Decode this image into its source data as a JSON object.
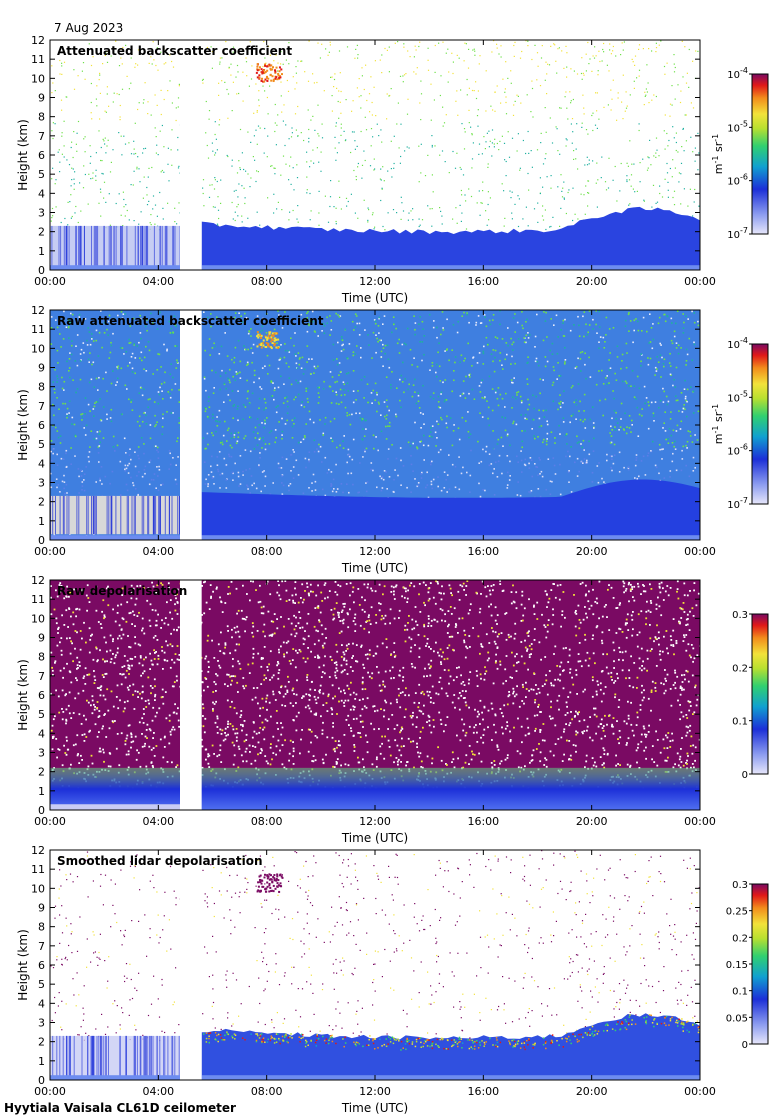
{
  "date_label": "7 Aug 2023",
  "footer": "Hyytiala Vaisala CL61D ceilometer",
  "colors": {
    "noise_blue": "#a9b4ee",
    "deep_blue": "#1c2fd8",
    "purple": "#7a0a63",
    "green": "#6ee04a",
    "yellow": "#f2e23a",
    "orange": "#f28c1c",
    "red": "#e01818",
    "gray_fill": "#d8d8d8"
  },
  "chart_data": [
    {
      "type": "heatmap",
      "title": "Attenuated backscatter coefficient",
      "xlabel": "Time (UTC)",
      "ylabel": "Height (km)",
      "xticks": [
        "00:00",
        "04:00",
        "08:00",
        "12:00",
        "16:00",
        "20:00",
        "00:00"
      ],
      "yticks": [
        "0",
        "1",
        "2",
        "3",
        "4",
        "5",
        "6",
        "7",
        "8",
        "9",
        "10",
        "11",
        "12"
      ],
      "xlim": [
        0,
        24
      ],
      "ylim": [
        0,
        12
      ],
      "data_gap_hours": [
        4.8,
        5.6
      ],
      "colorbar": {
        "scale": "log",
        "ticks": [
          "10",
          "10",
          "10",
          "10"
        ],
        "exponents": [
          "-7",
          "-6",
          "-5",
          "-4"
        ],
        "unit": "m",
        "unit_exp": "-1",
        "unit2": "sr",
        "unit2_exp": "-1"
      }
    },
    {
      "type": "heatmap",
      "title": "Raw attenuated backscatter coefficient",
      "xlabel": "Time (UTC)",
      "ylabel": "Height (km)",
      "xticks": [
        "00:00",
        "04:00",
        "08:00",
        "12:00",
        "16:00",
        "20:00",
        "00:00"
      ],
      "yticks": [
        "0",
        "1",
        "2",
        "3",
        "4",
        "5",
        "6",
        "7",
        "8",
        "9",
        "10",
        "11",
        "12"
      ],
      "xlim": [
        0,
        24
      ],
      "ylim": [
        0,
        12
      ],
      "data_gap_hours": [
        4.8,
        5.6
      ],
      "colorbar": {
        "scale": "log",
        "ticks": [
          "10",
          "10",
          "10",
          "10"
        ],
        "exponents": [
          "-7",
          "-6",
          "-5",
          "-4"
        ],
        "unit": "m",
        "unit_exp": "-1",
        "unit2": "sr",
        "unit2_exp": "-1"
      }
    },
    {
      "type": "heatmap",
      "title": "Raw depolarisation",
      "xlabel": "Time (UTC)",
      "ylabel": "Height (km)",
      "xticks": [
        "00:00",
        "04:00",
        "08:00",
        "12:00",
        "16:00",
        "20:00",
        "00:00"
      ],
      "yticks": [
        "0",
        "1",
        "2",
        "3",
        "4",
        "5",
        "6",
        "7",
        "8",
        "9",
        "10",
        "11",
        "12"
      ],
      "xlim": [
        0,
        24
      ],
      "ylim": [
        0,
        12
      ],
      "data_gap_hours": [
        4.8,
        5.6
      ],
      "colorbar": {
        "scale": "linear",
        "ticks": [
          "0",
          "0.1",
          "0.2",
          "0.3"
        ]
      }
    },
    {
      "type": "heatmap",
      "title": "Smoothed lidar depolarisation",
      "xlabel": "Time (UTC)",
      "ylabel": "Height (km)",
      "xticks": [
        "00:00",
        "04:00",
        "08:00",
        "12:00",
        "16:00",
        "20:00",
        "00:00"
      ],
      "yticks": [
        "0",
        "1",
        "2",
        "3",
        "4",
        "5",
        "6",
        "7",
        "8",
        "9",
        "10",
        "11",
        "12"
      ],
      "xlim": [
        0,
        24
      ],
      "ylim": [
        0,
        12
      ],
      "data_gap_hours": [
        4.8,
        5.6
      ],
      "colorbar": {
        "scale": "linear",
        "ticks": [
          "0",
          "0.05",
          "0.1",
          "0.15",
          "0.2",
          "0.25",
          "0.3"
        ]
      }
    }
  ]
}
